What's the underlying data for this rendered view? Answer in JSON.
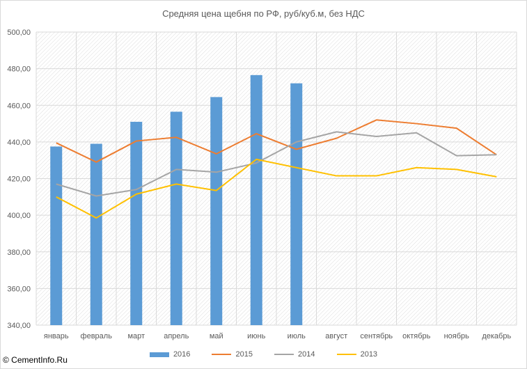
{
  "chart_data": {
    "type": "bar+line",
    "title": "Средняя цена щебня по РФ, руб/куб.м, без НДС",
    "categories": [
      "январь",
      "февраль",
      "март",
      "апрель",
      "май",
      "июнь",
      "июль",
      "август",
      "сентябрь",
      "октябрь",
      "ноябрь",
      "декабрь"
    ],
    "ylim": [
      340,
      500
    ],
    "yticks": [
      "340,00",
      "360,00",
      "380,00",
      "400,00",
      "420,00",
      "440,00",
      "460,00",
      "480,00",
      "500,00"
    ],
    "yticks_values": [
      340,
      360,
      380,
      400,
      420,
      440,
      460,
      480,
      500
    ],
    "grid": true,
    "legend_position": "bottom",
    "series": [
      {
        "name": "2016",
        "kind": "bar",
        "color": "#5b9bd5",
        "values": [
          437.5,
          439,
          451,
          456.5,
          464.5,
          476.5,
          472,
          null,
          null,
          null,
          null,
          null
        ]
      },
      {
        "name": "2015",
        "kind": "line",
        "color": "#ed7d31",
        "values": [
          439.5,
          429,
          440.5,
          442.5,
          433.5,
          444.5,
          436,
          442,
          452,
          450,
          447.5,
          433
        ]
      },
      {
        "name": "2014",
        "kind": "line",
        "color": "#a5a5a5",
        "values": [
          417,
          410.5,
          414,
          425,
          423.5,
          428.5,
          440,
          445.5,
          443,
          445,
          432.5,
          433
        ]
      },
      {
        "name": "2013",
        "kind": "line",
        "color": "#ffc000",
        "values": [
          410,
          398.5,
          411.5,
          417,
          413.5,
          430.5,
          426,
          421.5,
          421.5,
          426,
          425,
          421
        ]
      }
    ]
  },
  "watermark": "© CementInfo.Ru"
}
